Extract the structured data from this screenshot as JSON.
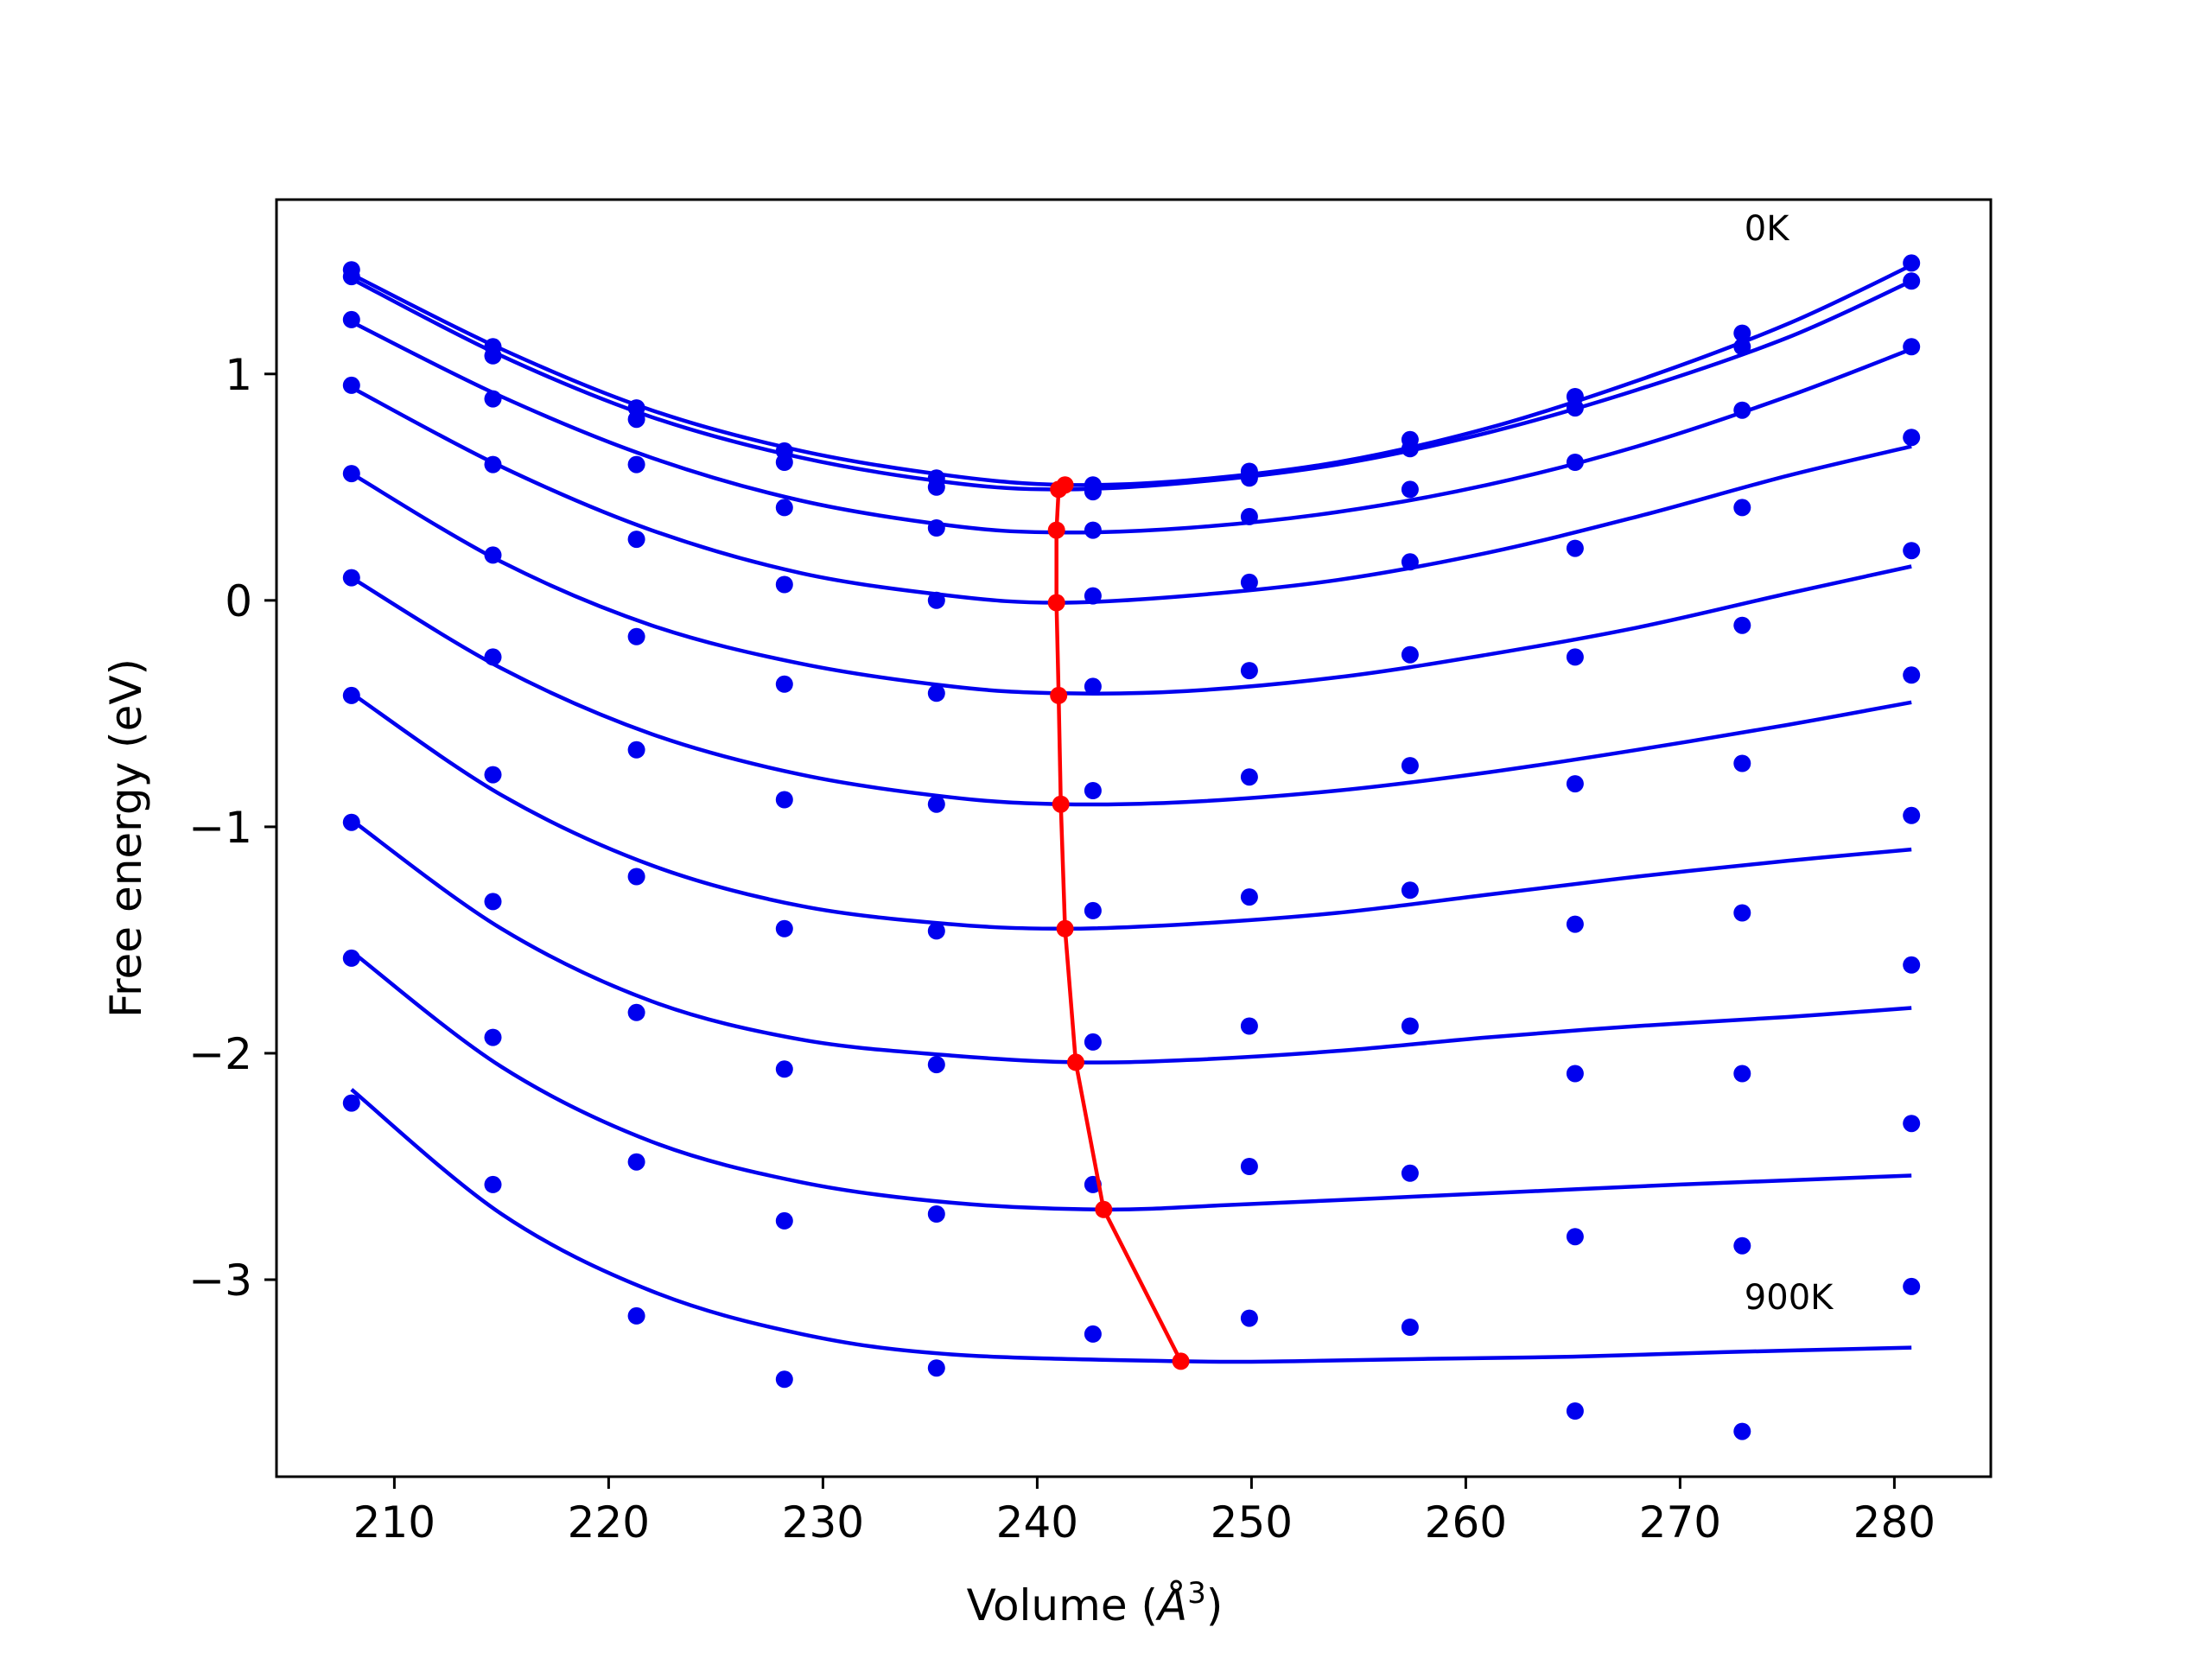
{
  "chart_data": {
    "type": "scatter",
    "xlabel": "Volume (",
    "xlabel_symbol": "Å",
    "xlabel_sup": "3",
    "xlabel_end": ")",
    "ylabel": "Free energy (eV)",
    "xlim": [
      204.5,
      284.5
    ],
    "ylim": [
      -3.87,
      1.77
    ],
    "xticks": [
      210,
      220,
      230,
      240,
      250,
      260,
      270,
      280
    ],
    "xtick_labels": [
      "210",
      "220",
      "230",
      "240",
      "250",
      "260",
      "270",
      "280"
    ],
    "yticks": [
      1,
      0,
      -1,
      -2,
      -3
    ],
    "ytick_labels": [
      "1",
      "0",
      "−1",
      "−2",
      "−3"
    ],
    "annotations": [
      {
        "text": "0K",
        "x": 273,
        "y": 1.59
      },
      {
        "text": "900K",
        "x": 273,
        "y": -3.13
      }
    ],
    "colors": {
      "points": "#0000ee",
      "fits": "#0000ee",
      "minimum": "#ff0000"
    },
    "volumes": [
      208.0,
      214.6,
      221.3,
      228.2,
      235.3,
      242.6,
      249.9,
      257.4,
      265.1,
      272.9,
      280.8
    ],
    "series": [
      {
        "points": [
          1.46,
          1.12,
          0.85,
          0.66,
          0.54,
          0.51,
          0.57,
          0.71,
          0.9,
          1.18,
          1.49
        ],
        "fit": {
          "x": [
            208,
            215,
            222,
            229,
            236,
            241.3,
            247,
            254,
            261,
            268,
            275,
            280.8
          ],
          "y": [
            1.44,
            1.11,
            0.84,
            0.66,
            0.55,
            0.51,
            0.53,
            0.61,
            0.76,
            0.97,
            1.22,
            1.48
          ]
        }
      },
      {
        "points": [
          1.43,
          1.08,
          0.8,
          0.61,
          0.5,
          0.48,
          0.54,
          0.67,
          0.85,
          1.12,
          1.41
        ],
        "fit": {
          "x": [
            208,
            215,
            222,
            229,
            236,
            241.0,
            247,
            254,
            261,
            268,
            275,
            280.8
          ],
          "y": [
            1.42,
            1.08,
            0.81,
            0.63,
            0.52,
            0.49,
            0.52,
            0.6,
            0.74,
            0.93,
            1.16,
            1.41
          ]
        }
      },
      {
        "points": [
          1.24,
          0.89,
          0.6,
          0.41,
          0.32,
          0.31,
          0.37,
          0.49,
          0.61,
          0.84,
          1.12
        ],
        "fit": {
          "x": [
            208,
            215,
            222,
            229,
            236,
            240.9,
            247,
            254,
            261,
            268,
            275,
            280.8
          ],
          "y": [
            1.23,
            0.9,
            0.63,
            0.44,
            0.33,
            0.3,
            0.32,
            0.39,
            0.51,
            0.68,
            0.9,
            1.11
          ]
        }
      },
      {
        "points": [
          0.95,
          0.6,
          0.27,
          0.07,
          0.0,
          0.02,
          0.08,
          0.17,
          0.23,
          0.41,
          0.72
        ],
        "fit": {
          "x": [
            208,
            215,
            222,
            229,
            236,
            240.9,
            247,
            254,
            261,
            268,
            275,
            280.8
          ],
          "y": [
            0.94,
            0.59,
            0.31,
            0.12,
            0.02,
            -0.01,
            0.02,
            0.09,
            0.21,
            0.37,
            0.55,
            0.68
          ]
        }
      },
      {
        "points": [
          0.56,
          0.2,
          -0.16,
          -0.37,
          -0.41,
          -0.38,
          -0.31,
          -0.24,
          -0.25,
          -0.11,
          0.22
        ],
        "fit": {
          "x": [
            208,
            215,
            222,
            229,
            236,
            241.0,
            247,
            254,
            261,
            268,
            275,
            280.8
          ],
          "y": [
            0.56,
            0.17,
            -0.11,
            -0.28,
            -0.38,
            -0.41,
            -0.4,
            -0.34,
            -0.24,
            -0.12,
            0.03,
            0.15
          ]
        }
      },
      {
        "points": [
          0.1,
          -0.25,
          -0.66,
          -0.88,
          -0.9,
          -0.84,
          -0.78,
          -0.73,
          -0.81,
          -0.72,
          -0.33
        ],
        "fit": {
          "x": [
            208,
            215,
            222,
            229,
            236,
            241.1,
            247,
            254,
            261,
            268,
            275,
            280.8
          ],
          "y": [
            0.1,
            -0.3,
            -0.59,
            -0.77,
            -0.87,
            -0.9,
            -0.89,
            -0.84,
            -0.76,
            -0.66,
            -0.55,
            -0.45
          ]
        }
      },
      {
        "points": [
          -0.42,
          -0.77,
          -1.22,
          -1.45,
          -1.46,
          -1.37,
          -1.31,
          -1.28,
          -1.43,
          -1.38,
          -0.95
        ],
        "fit": {
          "x": [
            208,
            215,
            222,
            229,
            236,
            241.3,
            247,
            254,
            261,
            268,
            275,
            280.8
          ],
          "y": [
            -0.41,
            -0.86,
            -1.17,
            -1.35,
            -1.43,
            -1.45,
            -1.43,
            -1.38,
            -1.3,
            -1.22,
            -1.15,
            -1.1
          ]
        }
      },
      {
        "points": [
          -0.98,
          -1.33,
          -1.82,
          -2.07,
          -2.05,
          -1.95,
          -1.88,
          -1.88,
          -2.09,
          -2.09,
          -1.61
        ],
        "fit": {
          "x": [
            208,
            215,
            222,
            229,
            236,
            241.8,
            247,
            254,
            261,
            268,
            275,
            280.8
          ],
          "y": [
            -0.97,
            -1.45,
            -1.77,
            -1.94,
            -2.01,
            -2.04,
            -2.03,
            -1.99,
            -1.93,
            -1.88,
            -1.84,
            -1.8
          ]
        }
      },
      {
        "points": [
          -1.58,
          -1.93,
          -2.48,
          -2.74,
          -2.71,
          -2.58,
          -2.5,
          -2.53,
          -2.81,
          -2.85,
          -2.31
        ],
        "fit": {
          "x": [
            208,
            215,
            222,
            229,
            236,
            243.1,
            249,
            256,
            263,
            270,
            280.8
          ],
          "y": [
            -1.55,
            -2.06,
            -2.39,
            -2.57,
            -2.66,
            -2.69,
            -2.67,
            -2.64,
            -2.61,
            -2.58,
            -2.54
          ]
        }
      },
      {
        "points": [
          -2.22,
          -2.58,
          -3.16,
          -3.44,
          -3.39,
          -3.24,
          -3.17,
          -3.21,
          -3.58,
          -3.67,
          -3.03
        ],
        "fit": {
          "x": [
            208,
            215,
            222,
            229,
            236,
            246.7,
            252,
            258,
            265,
            272,
            280.8
          ],
          "y": [
            -2.16,
            -2.71,
            -3.05,
            -3.24,
            -3.33,
            -3.36,
            -3.36,
            -3.35,
            -3.34,
            -3.32,
            -3.3
          ]
        }
      }
    ],
    "minimum_curve": {
      "x": [
        241.3,
        241.0,
        240.9,
        240.9,
        241.0,
        241.1,
        241.3,
        241.8,
        243.1,
        246.7
      ],
      "y": [
        0.51,
        0.49,
        0.31,
        -0.01,
        -0.42,
        -0.9,
        -1.45,
        -2.04,
        -2.69,
        -3.36
      ]
    }
  }
}
